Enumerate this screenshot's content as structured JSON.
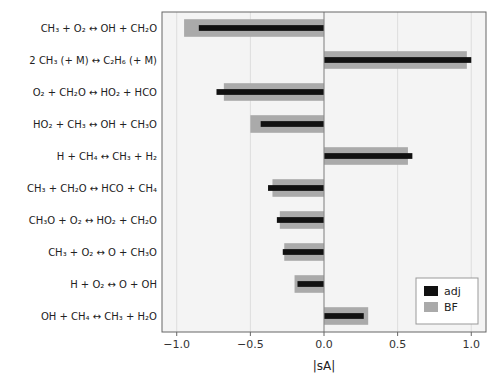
{
  "chart_data": {
    "type": "bar",
    "orientation": "horizontal",
    "xlabel": "|sA|",
    "categories": [
      "CH₃ + O₂ ↔ OH + CH₂O",
      "2 CH₃ (+ M) ↔ C₂H₆ (+ M)",
      "O₂ + CH₂O ↔ HO₂ + HCO",
      "HO₂ + CH₃ ↔ OH + CH₃O",
      "H + CH₄ ↔ CH₃ + H₂",
      "CH₃ + CH₂O ↔ HCO + CH₄",
      "CH₃O + O₂ ↔ HO₂ + CH₂O",
      "CH₃ + O₂ ↔ O + CH₃O",
      "H + O₂ ↔ O + OH",
      "OH + CH₄ ↔ CH₃ + H₂O"
    ],
    "series": [
      {
        "name": "adj",
        "color": "#111111",
        "values": [
          -0.85,
          1.0,
          -0.73,
          -0.43,
          0.6,
          -0.38,
          -0.32,
          -0.28,
          -0.18,
          0.27
        ]
      },
      {
        "name": "BF",
        "color": "#aaaaaa",
        "values": [
          -0.95,
          0.97,
          -0.68,
          -0.5,
          0.57,
          -0.35,
          -0.3,
          -0.27,
          -0.2,
          0.3
        ]
      }
    ],
    "xlim": [
      -1.1,
      1.1
    ],
    "xticks": [
      {
        "value": -1,
        "label": "−1.0"
      },
      {
        "value": -0.5,
        "label": "−0.5"
      },
      {
        "value": 0,
        "label": "0.0"
      },
      0.5,
      {
        "value": 1,
        "label": "1.0"
      }
    ],
    "legend": "lower right"
  }
}
